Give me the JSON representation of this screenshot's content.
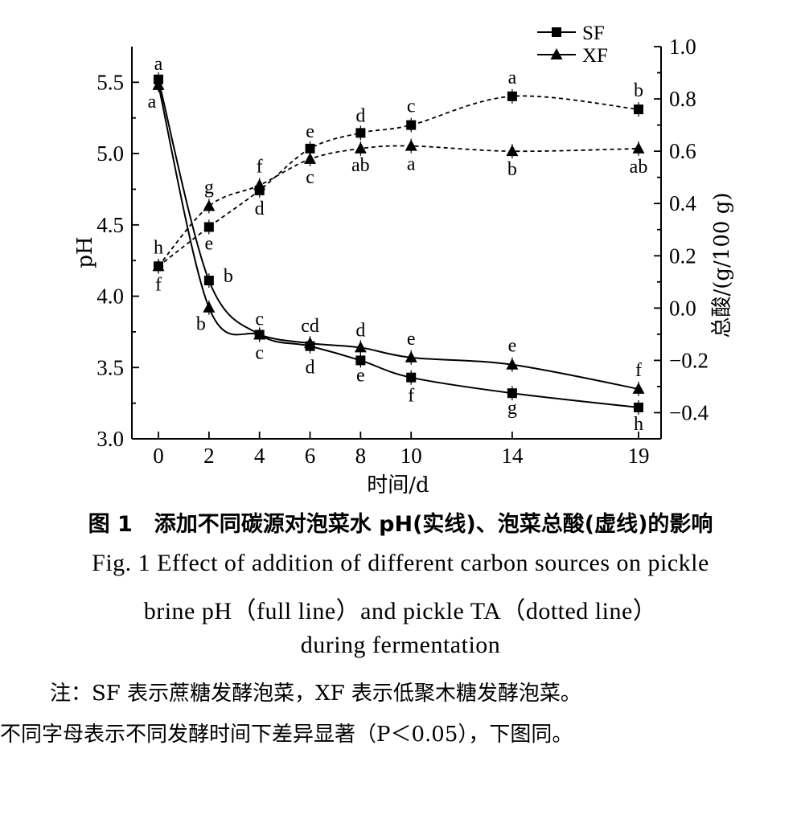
{
  "chart_data": {
    "type": "line",
    "x": [
      0,
      2,
      4,
      6,
      8,
      10,
      14,
      19
    ],
    "x_ticks": [
      "0",
      "2",
      "4",
      "6",
      "8",
      "10",
      "14",
      "19"
    ],
    "xlabel": "时间/d",
    "ylabel_left": "pH",
    "ylabel_right": "总酸/(g/100 g)",
    "ylim_left": [
      3.0,
      5.75
    ],
    "yticks_left": [
      "3.0",
      "3.5",
      "4.0",
      "4.5",
      "5.0",
      "5.5"
    ],
    "ylim_right": [
      -0.5,
      1.0
    ],
    "yticks_right": [
      "−0.4",
      "−0.2",
      "0.0",
      "0.2",
      "0.4",
      "0.6",
      "0.8",
      "1.0"
    ],
    "legend": {
      "position": "top-right",
      "entries": [
        "SF",
        "XF"
      ]
    },
    "grid": false,
    "series": [
      {
        "name": "SF",
        "metric": "pH",
        "axis": "left",
        "style": "solid",
        "marker": "square",
        "values": [
          5.52,
          4.11,
          3.73,
          3.65,
          3.55,
          3.43,
          3.32,
          3.22
        ],
        "labels": [
          "a",
          "b",
          "c",
          "d",
          "e",
          "f",
          "g",
          "h"
        ]
      },
      {
        "name": "XF",
        "metric": "pH",
        "axis": "left",
        "style": "solid",
        "marker": "triangle",
        "values": [
          5.48,
          3.92,
          3.73,
          3.67,
          3.64,
          3.57,
          3.52,
          3.35
        ],
        "labels": [
          "a",
          "b",
          "c",
          "cd",
          "d",
          "e",
          "e",
          "f"
        ]
      },
      {
        "name": "SF",
        "metric": "总酸",
        "axis": "right",
        "style": "dashed",
        "marker": "square",
        "values": [
          0.16,
          0.31,
          0.45,
          0.61,
          0.67,
          0.7,
          0.81,
          0.76
        ],
        "labels": [
          "h",
          "e",
          "d",
          "e",
          "d",
          "c",
          "a",
          "b"
        ]
      },
      {
        "name": "XF",
        "metric": "总酸",
        "axis": "right",
        "style": "dashed",
        "marker": "triangle",
        "values": [
          0.16,
          0.39,
          0.47,
          0.57,
          0.61,
          0.62,
          0.6,
          0.61
        ],
        "labels": [
          "f",
          "g",
          "f",
          "c",
          "ab",
          "a",
          "b",
          "ab"
        ]
      }
    ]
  },
  "caption": {
    "cn": "图 1　添加不同碳源对泡菜水 pH(实线)、泡菜总酸(虚线)的影响",
    "en_line1": "Fig. 1 Effect of addition of different carbon sources on pickle",
    "en_line2": "brine pH（full line）and pickle TA（dotted line）",
    "en_line3": "during fermentation"
  },
  "note": {
    "line1": "注：SF 表示蔗糖发酵泡菜，XF 表示低聚木糖发酵泡菜。",
    "line2": "不同字母表示不同发酵时间下差异显著（P＜0.05），下图同。"
  }
}
